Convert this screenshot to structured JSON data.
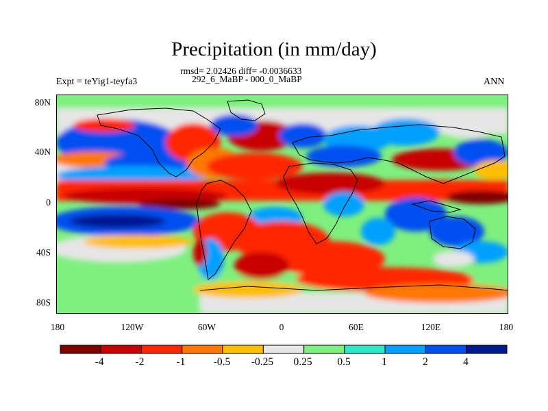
{
  "title": "Precipitation (in mm/day)",
  "stats_line": "rmsd= 2.02426 diff= -0.0036633",
  "diff_label": "292_6_MaBP - 000_0_MaBP",
  "experiment": "Expt = teYig1-teyfa3",
  "season": "ANN",
  "lat_ticks": [
    "80N",
    "40N",
    "0",
    "40S",
    "80S"
  ],
  "lon_ticks": [
    "180",
    "120W",
    "60W",
    "0",
    "60E",
    "120E",
    "180"
  ],
  "colorbar": {
    "colors": [
      "#800000",
      "#c80000",
      "#ff2800",
      "#ff7800",
      "#ffbe00",
      "#e6e6e6",
      "#7ef07e",
      "#2ee8c8",
      "#00a0ff",
      "#0050f0",
      "#001890"
    ],
    "labels": [
      "-4",
      "-2",
      "-1",
      "-0.5",
      "-0.25",
      "0.25",
      "0.5",
      "1",
      "2",
      "4"
    ]
  },
  "colors": {
    "neutral": "#e6e6e6",
    "coast": "#000000"
  }
}
